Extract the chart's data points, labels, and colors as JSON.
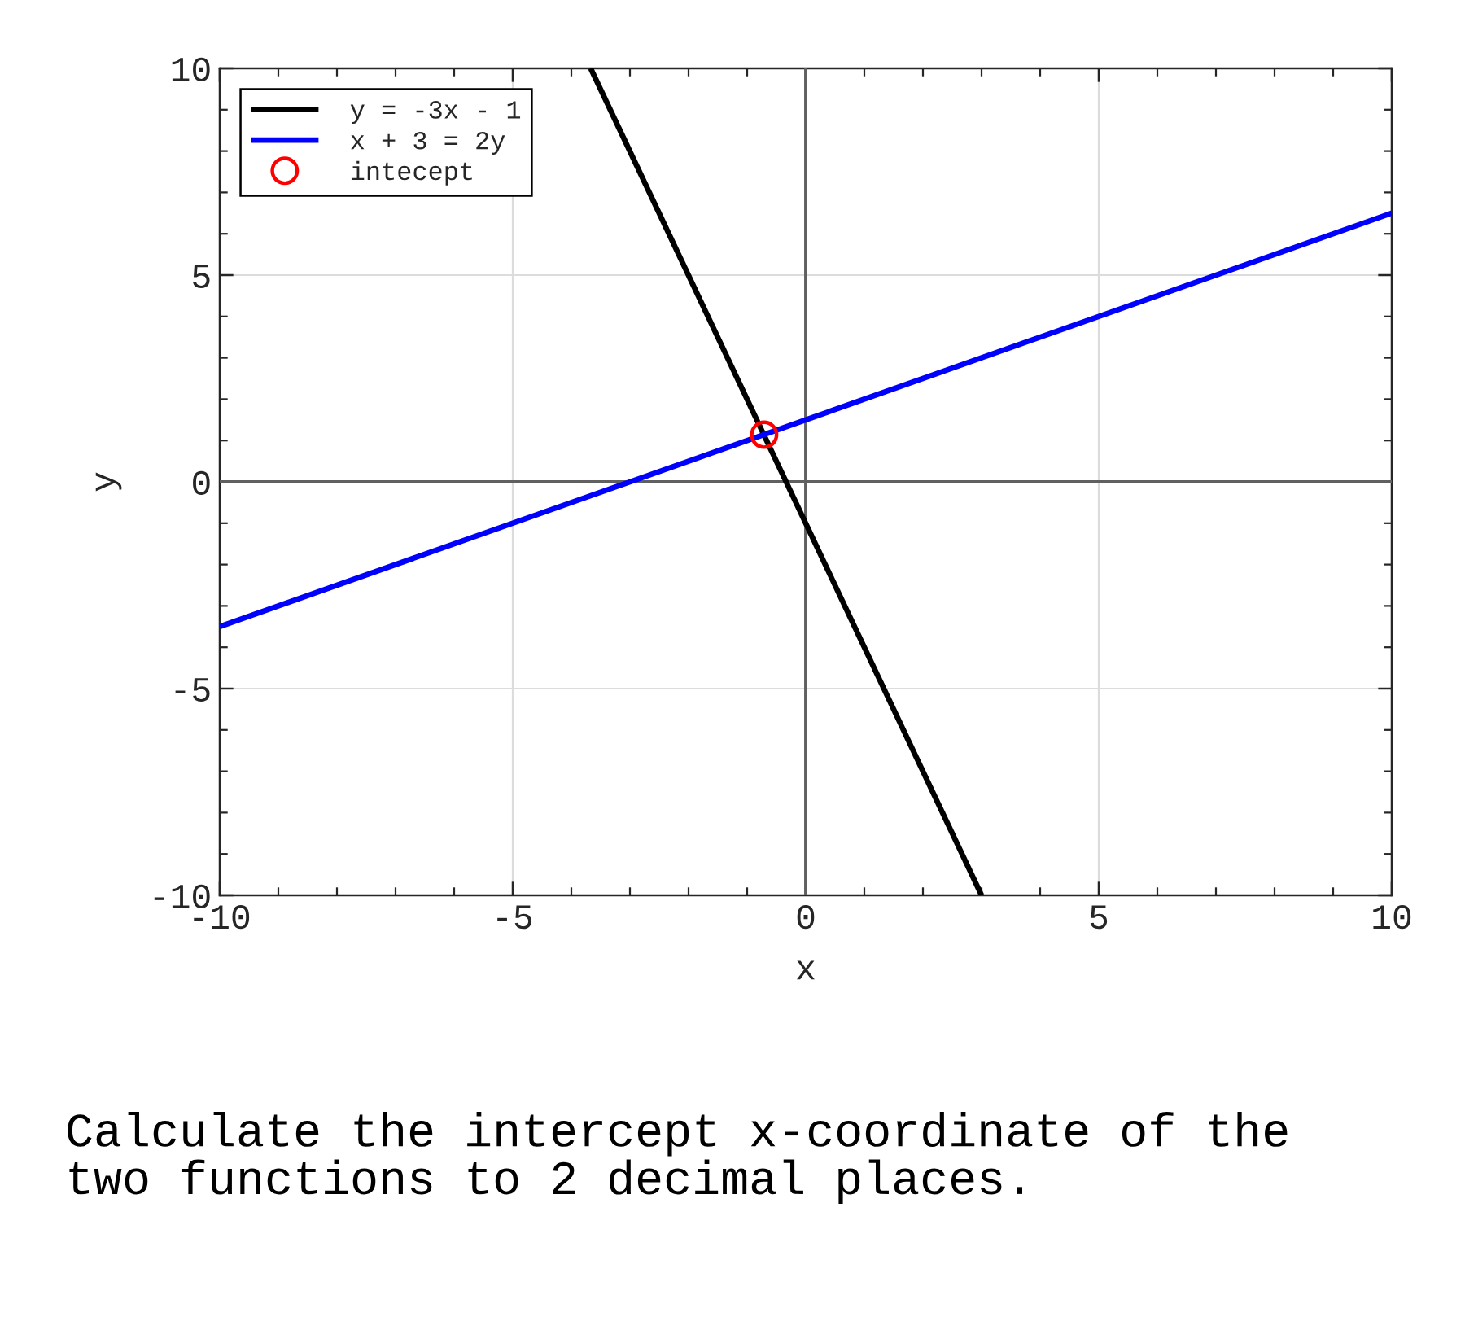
{
  "chart_data": {
    "type": "line",
    "xlabel": "x",
    "ylabel": "y",
    "xlim": [
      -10,
      10
    ],
    "ylim": [
      -10,
      10
    ],
    "xticks": [
      -10,
      -5,
      0,
      5,
      10
    ],
    "yticks": [
      -10,
      -5,
      0,
      5,
      10
    ],
    "grid": true,
    "legend": "top left",
    "line_style": "solid",
    "series": [
      {
        "color": "#606060",
        "x": [
          0,
          0
        ],
        "values": [
          -10,
          10
        ]
      },
      {
        "color": "#606060",
        "x": [
          -10,
          10
        ],
        "values": [
          0,
          0
        ]
      },
      {
        "name": "y = -3x - 1",
        "color": "#000000",
        "x": [
          -3.67,
          3
        ],
        "values": [
          10,
          -10
        ]
      },
      {
        "name": "x + 3 = 2y",
        "color": "#0000ff",
        "x": [
          -10,
          10
        ],
        "values": [
          -3.5,
          6.5
        ]
      },
      {
        "name": "intecept",
        "type": "scatter",
        "color": "#ff0000",
        "marker": "circle",
        "x": [
          -0.71
        ],
        "values": [
          1.14
        ]
      }
    ],
    "annotations": [
      "Calculate the intercept x-coordinate of the\ntwo functions to 2 decimal places."
    ]
  }
}
